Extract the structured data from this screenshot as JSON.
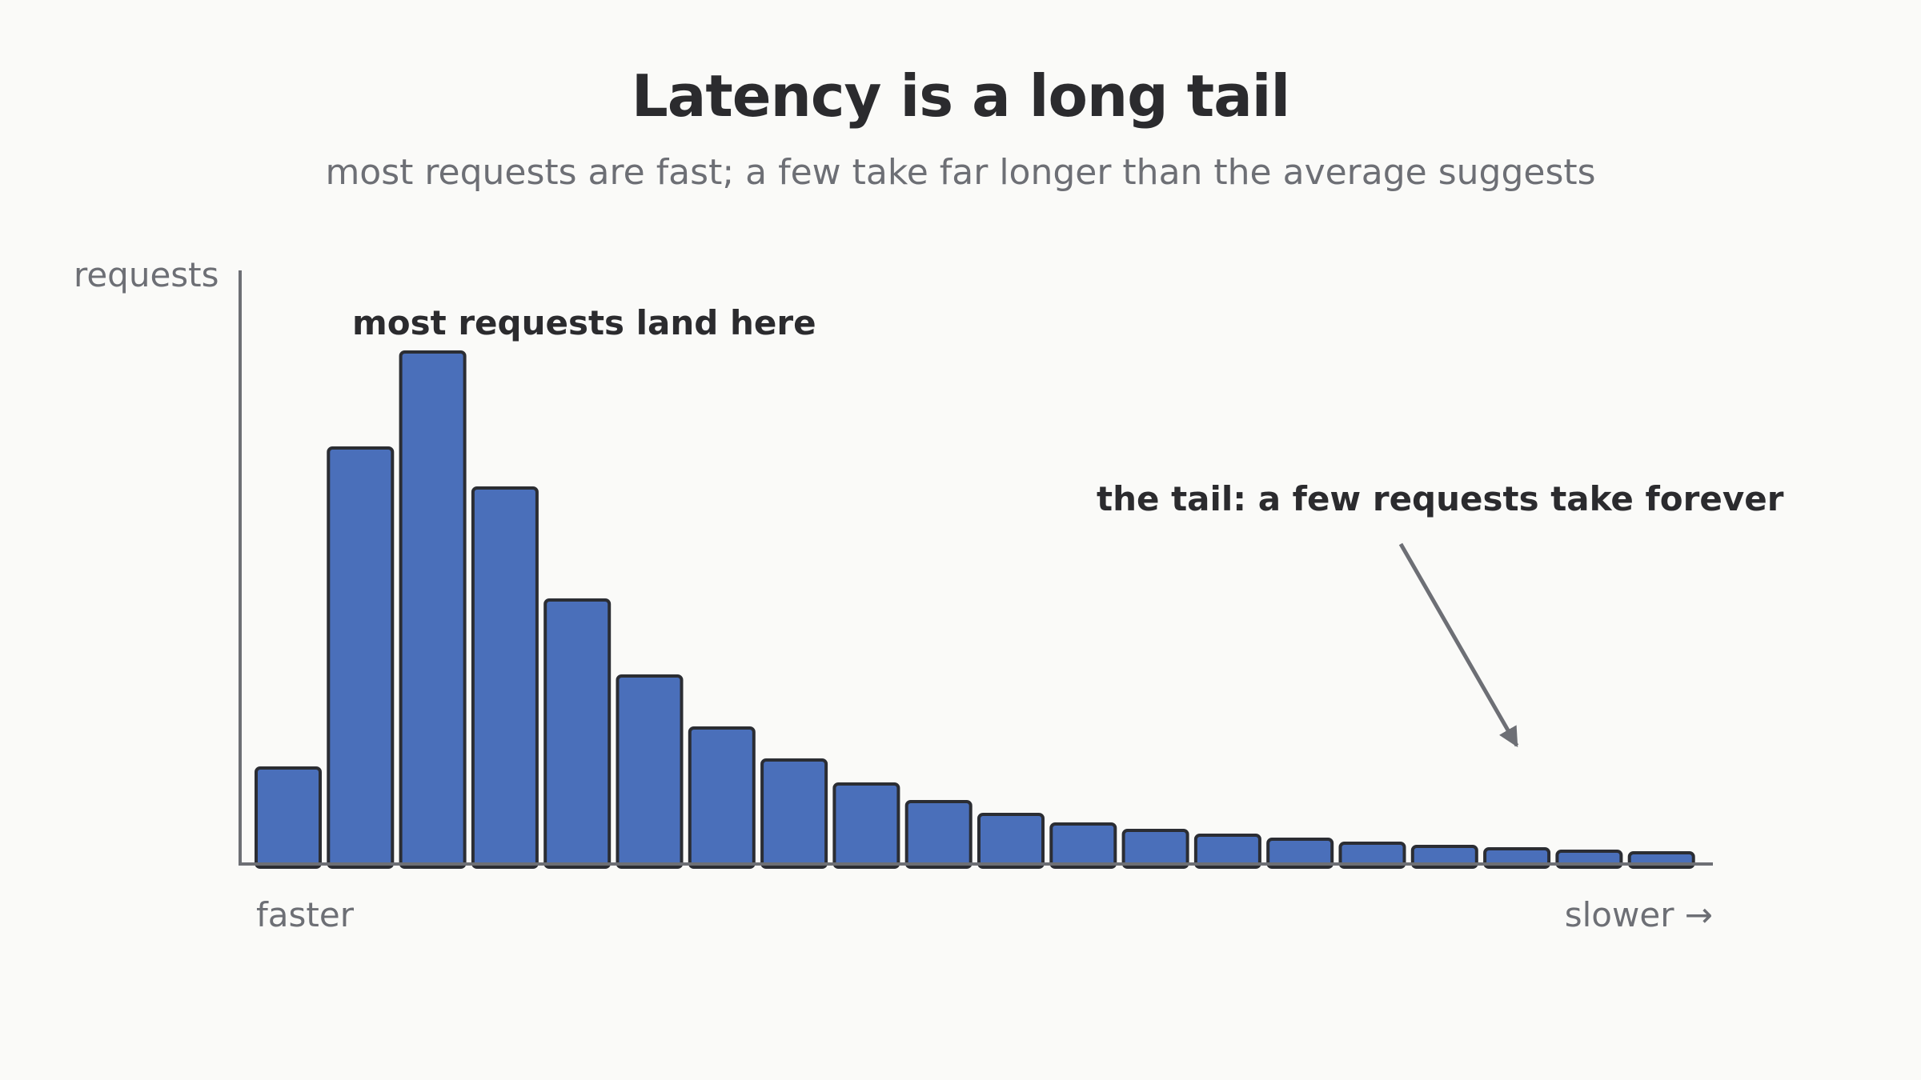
{
  "title": "Latency is a long tail",
  "subtitle": "most requests are fast; a few take far longer than the average suggests",
  "chart_data": {
    "type": "bar",
    "ylabel": "requests",
    "x_left_label": "faster",
    "x_right_label": "slower →",
    "values": [
      12,
      52,
      64,
      47,
      33,
      23.5,
      17,
      13,
      10,
      7.8,
      6.2,
      5,
      4.2,
      3.6,
      3.1,
      2.6,
      2.2,
      1.9,
      1.6,
      1.4
    ],
    "ylim": [
      0,
      74
    ],
    "grid": false,
    "bar_color": "#4a6fba",
    "bar_edge_color": "#2b2d33",
    "axis_color": "#6d6f75",
    "annotations": [
      {
        "text": "most requests land here",
        "target_bar": 2
      },
      {
        "text": "the tail: a few requests take forever",
        "target_bar": 17
      }
    ]
  }
}
